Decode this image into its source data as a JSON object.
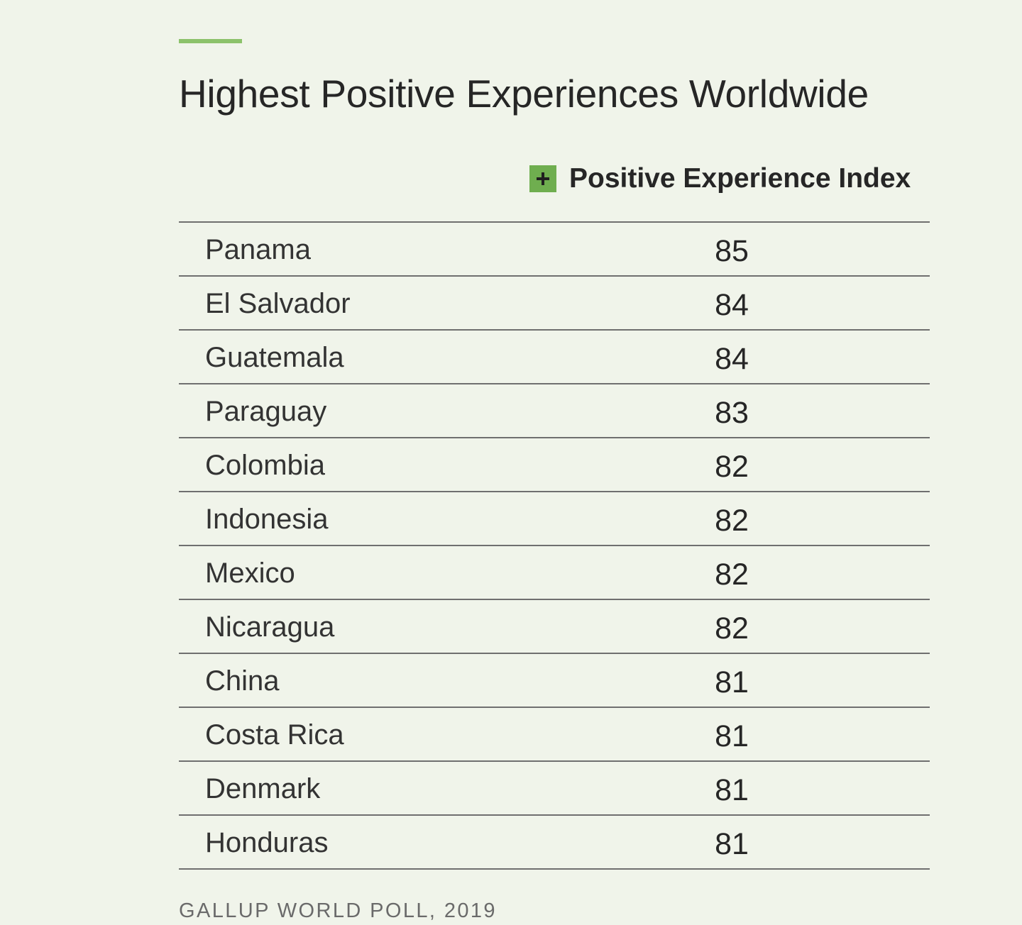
{
  "title": "Highest Positive Experiences Worldwide",
  "legend": {
    "icon": "plus-icon",
    "label": "Positive Experience Index",
    "color": "#6fae4f"
  },
  "accent_color": "#8cc26b",
  "source": "GALLUP WORLD POLL, 2019",
  "chart_data": {
    "type": "table",
    "title": "Highest Positive Experiences Worldwide",
    "columns": [
      "",
      "Positive Experience Index"
    ],
    "rows": [
      {
        "country": "Panama",
        "value": 85
      },
      {
        "country": "El Salvador",
        "value": 84
      },
      {
        "country": "Guatemala",
        "value": 84
      },
      {
        "country": "Paraguay",
        "value": 83
      },
      {
        "country": "Colombia",
        "value": 82
      },
      {
        "country": "Indonesia",
        "value": 82
      },
      {
        "country": "Mexico",
        "value": 82
      },
      {
        "country": "Nicaragua",
        "value": 82
      },
      {
        "country": "China",
        "value": 81
      },
      {
        "country": "Costa Rica",
        "value": 81
      },
      {
        "country": "Denmark",
        "value": 81
      },
      {
        "country": "Honduras",
        "value": 81
      }
    ]
  }
}
